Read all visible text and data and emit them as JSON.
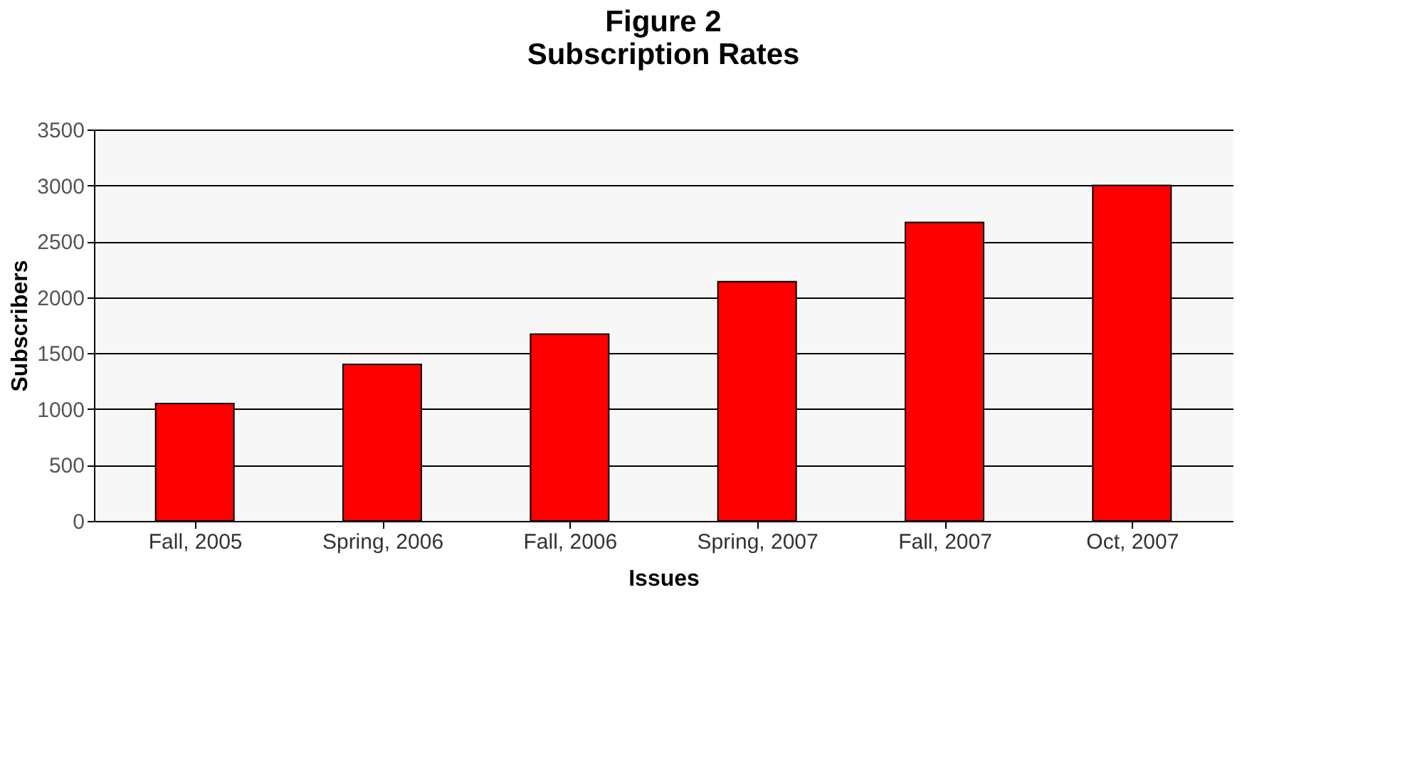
{
  "chart_data": {
    "type": "bar",
    "title": "Figure 2\nSubscription Rates",
    "xlabel": "Issues",
    "ylabel": "Subscribers",
    "categories": [
      "Fall, 2005",
      "Spring, 2006",
      "Fall, 2006",
      "Spring, 2007",
      "Fall, 2007",
      "Oct, 2007"
    ],
    "values": [
      1050,
      1400,
      1670,
      2140,
      2670,
      3000
    ],
    "color": "#ff0000",
    "ylim": [
      0,
      3500
    ],
    "yticks": [
      0,
      500,
      1000,
      1500,
      2000,
      2500,
      3000,
      3500
    ],
    "grid": "y"
  }
}
